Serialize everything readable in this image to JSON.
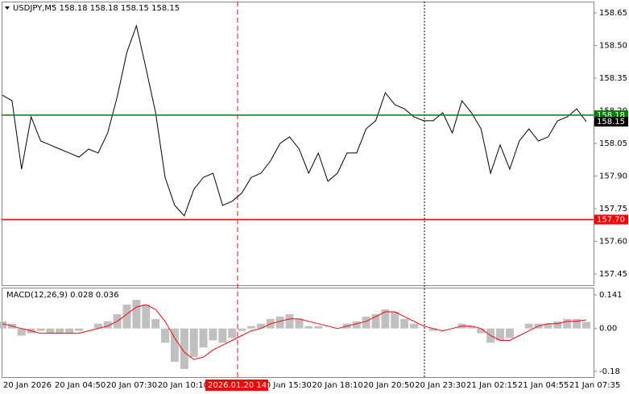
{
  "chart_data": [
    {
      "type": "line",
      "title": "USDJPY,M5  158.18 158.18 158.15 158.15",
      "color": "#000000",
      "values": [
        158.272,
        158.246,
        157.932,
        158.172,
        158.061,
        158.043,
        158.024,
        158.006,
        157.987,
        158.024,
        158.006,
        158.098,
        158.265,
        158.469,
        158.591,
        158.395,
        158.191,
        157.894,
        157.765,
        157.717,
        157.839,
        157.894,
        157.913,
        157.765,
        157.784,
        157.821,
        157.894,
        157.913,
        157.969,
        158.05,
        158.08,
        158.024,
        157.913,
        158.006,
        157.876,
        157.913,
        158.006,
        158.006,
        158.117,
        158.154,
        158.283,
        158.228,
        158.209,
        158.172,
        158.154,
        158.154,
        158.191,
        158.098,
        158.246,
        158.191,
        158.117,
        157.913,
        158.043,
        157.932,
        158.061,
        158.117,
        158.061,
        158.08,
        158.154,
        158.172,
        158.209,
        158.15
      ],
      "ylim": [
        157.398,
        158.702
      ],
      "yticks": [
        158.65,
        {
          "value": 158.5,
          "label": "158.50"
        },
        158.35,
        {
          "value": 158.2,
          "label": "158.20"
        },
        158.05,
        {
          "value": 157.9,
          "label": "157.90"
        },
        157.75,
        {
          "value": 157.6,
          "label": "157.60"
        },
        157.45
      ],
      "hlines": [
        {
          "value": 158.18,
          "color": "#008000"
        },
        {
          "value": 157.7,
          "label": "157.70",
          "color": "#ff0000"
        }
      ],
      "last": 158.15,
      "last_color": "#000000"
    },
    {
      "type": "macd",
      "title": "MACD(12,26,9) 0.028 0.036",
      "histogram": {
        "color": "#c0c0c0",
        "values": [
          0.03,
          0.02,
          -0.03,
          -0.02,
          -0.01,
          -0.02,
          -0.02,
          -0.02,
          -0.01,
          0.0,
          0.02,
          0.03,
          0.06,
          0.1,
          0.12,
          0.1,
          0.04,
          -0.06,
          -0.14,
          -0.17,
          -0.12,
          -0.08,
          -0.05,
          -0.06,
          -0.04,
          -0.01,
          0.01,
          0.02,
          0.04,
          0.05,
          0.06,
          0.04,
          0.01,
          0.01,
          0.0,
          0.0,
          0.02,
          0.03,
          0.05,
          0.06,
          0.08,
          0.07,
          0.04,
          0.02,
          0.0,
          -0.01,
          0.0,
          0.0,
          0.02,
          0.01,
          -0.02,
          -0.06,
          -0.05,
          -0.04,
          0.0,
          0.02,
          0.02,
          0.02,
          0.03,
          0.04,
          0.04,
          0.028
        ]
      },
      "signal": {
        "color": "#ff0000",
        "values": [
          0.02,
          0.01,
          0.0,
          -0.01,
          -0.02,
          -0.02,
          -0.02,
          -0.02,
          -0.02,
          -0.01,
          0.0,
          0.01,
          0.03,
          0.06,
          0.09,
          0.1,
          0.08,
          0.03,
          -0.04,
          -0.1,
          -0.13,
          -0.12,
          -0.09,
          -0.07,
          -0.05,
          -0.03,
          -0.01,
          0.0,
          0.02,
          0.03,
          0.04,
          0.04,
          0.03,
          0.02,
          0.01,
          0.0,
          0.01,
          0.02,
          0.03,
          0.05,
          0.07,
          0.07,
          0.05,
          0.03,
          0.01,
          0.0,
          -0.01,
          0.0,
          0.01,
          0.01,
          0.0,
          -0.03,
          -0.05,
          -0.05,
          -0.03,
          -0.01,
          0.01,
          0.02,
          0.02,
          0.03,
          0.03,
          0.036
        ]
      },
      "ylim": [
        -0.204,
        0.168
      ],
      "yticks": [
        0.141,
        {
          "value": 0,
          "label": "0.00"
        },
        -0.18
      ],
      "xlabels": [
        "20 Jan 2026",
        "20 Jan 04:50",
        "20 Jan 07:30",
        "20 Jan 10:10",
        null,
        "20 Jan 15:30",
        "20 Jan 18:10",
        "20 Jan 20:50",
        "20 Jan 23:30",
        "21 Jan 02:15",
        "21 Jan 04:55",
        "21 Jan 07:35"
      ],
      "crosshair_label": "2026.01.20 14:20"
    }
  ]
}
